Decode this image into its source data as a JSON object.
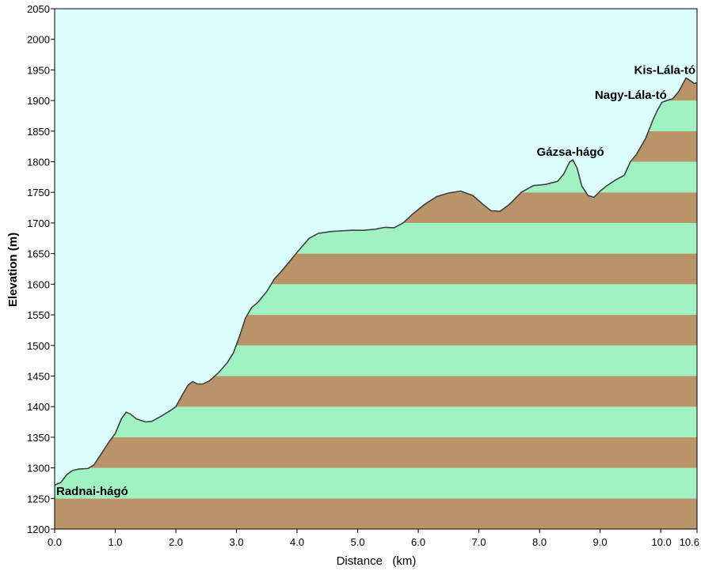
{
  "chart_data": {
    "type": "area",
    "xlabel": "Distance   (km)",
    "ylabel": "Elevation (m)",
    "xlim": [
      0,
      10.6
    ],
    "ylim": [
      1200,
      2050
    ],
    "x_ticks": [
      "0.0",
      "1.0",
      "2.0",
      "3.0",
      "4.0",
      "5.0",
      "6.0",
      "7.0",
      "8.0",
      "9.0",
      "10.0",
      "10.6"
    ],
    "x_tick_values": [
      0,
      1,
      2,
      3,
      4,
      5,
      6,
      7,
      8,
      9,
      10,
      10.6
    ],
    "y_ticks": [
      1200,
      1250,
      1300,
      1350,
      1400,
      1450,
      1500,
      1550,
      1600,
      1650,
      1700,
      1750,
      1800,
      1850,
      1900,
      1950,
      2000,
      2050
    ],
    "band_interval": 50,
    "grid": false,
    "colors": {
      "sky": "#dcfefe",
      "band_brown": "#b99469",
      "band_green": "#a0f2c2",
      "profile_line": "#404040",
      "frame": "#000000"
    },
    "profile": [
      [
        0.0,
        1272
      ],
      [
        0.1,
        1276
      ],
      [
        0.2,
        1289
      ],
      [
        0.3,
        1296
      ],
      [
        0.4,
        1298
      ],
      [
        0.55,
        1299
      ],
      [
        0.65,
        1305
      ],
      [
        0.75,
        1320
      ],
      [
        0.9,
        1343
      ],
      [
        1.0,
        1356
      ],
      [
        1.1,
        1380
      ],
      [
        1.18,
        1391
      ],
      [
        1.25,
        1388
      ],
      [
        1.35,
        1380
      ],
      [
        1.5,
        1375
      ],
      [
        1.6,
        1376
      ],
      [
        1.75,
        1384
      ],
      [
        1.9,
        1393
      ],
      [
        2.0,
        1400
      ],
      [
        2.1,
        1418
      ],
      [
        2.2,
        1435
      ],
      [
        2.28,
        1441
      ],
      [
        2.35,
        1437
      ],
      [
        2.45,
        1437
      ],
      [
        2.55,
        1442
      ],
      [
        2.7,
        1455
      ],
      [
        2.85,
        1472
      ],
      [
        2.95,
        1488
      ],
      [
        3.05,
        1515
      ],
      [
        3.15,
        1545
      ],
      [
        3.25,
        1562
      ],
      [
        3.35,
        1570
      ],
      [
        3.5,
        1588
      ],
      [
        3.62,
        1608
      ],
      [
        3.75,
        1622
      ],
      [
        3.9,
        1640
      ],
      [
        4.05,
        1658
      ],
      [
        4.2,
        1675
      ],
      [
        4.35,
        1683
      ],
      [
        4.55,
        1686
      ],
      [
        4.7,
        1687
      ],
      [
        4.9,
        1688
      ],
      [
        5.1,
        1688
      ],
      [
        5.3,
        1690
      ],
      [
        5.45,
        1693
      ],
      [
        5.6,
        1692
      ],
      [
        5.75,
        1700
      ],
      [
        5.9,
        1714
      ],
      [
        6.1,
        1730
      ],
      [
        6.3,
        1743
      ],
      [
        6.5,
        1749
      ],
      [
        6.7,
        1752
      ],
      [
        6.9,
        1745
      ],
      [
        7.05,
        1732
      ],
      [
        7.2,
        1720
      ],
      [
        7.35,
        1719
      ],
      [
        7.5,
        1730
      ],
      [
        7.7,
        1750
      ],
      [
        7.9,
        1761
      ],
      [
        8.1,
        1763
      ],
      [
        8.3,
        1768
      ],
      [
        8.4,
        1780
      ],
      [
        8.5,
        1800
      ],
      [
        8.55,
        1803
      ],
      [
        8.62,
        1790
      ],
      [
        8.7,
        1760
      ],
      [
        8.8,
        1745
      ],
      [
        8.9,
        1742
      ],
      [
        9.0,
        1752
      ],
      [
        9.1,
        1760
      ],
      [
        9.25,
        1770
      ],
      [
        9.4,
        1778
      ],
      [
        9.5,
        1800
      ],
      [
        9.6,
        1812
      ],
      [
        9.75,
        1838
      ],
      [
        9.88,
        1870
      ],
      [
        9.95,
        1885
      ],
      [
        10.02,
        1897
      ],
      [
        10.1,
        1900
      ],
      [
        10.2,
        1903
      ],
      [
        10.3,
        1915
      ],
      [
        10.38,
        1930
      ],
      [
        10.42,
        1937
      ],
      [
        10.48,
        1933
      ],
      [
        10.55,
        1928
      ],
      [
        10.6,
        1929
      ]
    ],
    "annotations": [
      {
        "text": "Radnai-hágó",
        "x": 0.0,
        "y": 1262
      },
      {
        "text": "Gázsa-hágó",
        "x": 8.55,
        "y": 1816
      },
      {
        "text": "Nagy-Lála-tó",
        "x": 10.1,
        "y": 1909
      },
      {
        "text": "Kis-Lála-tó",
        "x": 10.6,
        "y": 1950
      }
    ]
  }
}
